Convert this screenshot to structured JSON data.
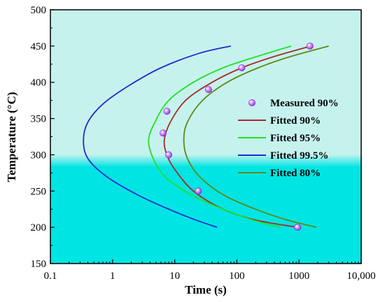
{
  "chart_data": {
    "type": "line",
    "xlabel": "Time (s)",
    "ylabel": "Temperature (°C)",
    "x_scale": "log",
    "xlim": [
      0.1,
      10000
    ],
    "ylim": [
      150,
      500
    ],
    "x_ticks": [
      {
        "value": 0.1,
        "label": "0.1"
      },
      {
        "value": 1,
        "label": "1"
      },
      {
        "value": 10,
        "label": "10"
      },
      {
        "value": 100,
        "label": "100"
      },
      {
        "value": 1000,
        "label": "1000"
      },
      {
        "value": 10000,
        "label": "10,000"
      }
    ],
    "y_ticks": [
      150,
      200,
      250,
      300,
      350,
      400,
      450,
      500
    ],
    "legend_position": "right",
    "background_colors": {
      "upper": "#c6f2ee",
      "lower": "#00e5e3"
    },
    "measured": {
      "name": "Measured 90%",
      "color": "#b44cf0",
      "points": [
        {
          "x": 1500,
          "y": 450
        },
        {
          "x": 120,
          "y": 420
        },
        {
          "x": 35,
          "y": 390
        },
        {
          "x": 7.5,
          "y": 360
        },
        {
          "x": 6.5,
          "y": 330
        },
        {
          "x": 8,
          "y": 300
        },
        {
          "x": 24,
          "y": 250
        },
        {
          "x": 950,
          "y": 200
        }
      ]
    },
    "series": [
      {
        "name": "Fitted 90%",
        "color": "#a52a2a",
        "x": [
          1550,
          380,
          120,
          40,
          15,
          8.5,
          6.8,
          7.5,
          10,
          20,
          60,
          200,
          950
        ],
        "y": [
          450,
          435,
          420,
          400,
          375,
          345,
          320,
          300,
          280,
          250,
          225,
          210,
          200
        ]
      },
      {
        "name": "Fitted 95%",
        "color": "#22e022",
        "x": [
          750,
          200,
          60,
          20,
          8,
          4.8,
          3.8,
          4.5,
          7,
          18,
          60,
          180,
          500
        ],
        "y": [
          450,
          435,
          420,
          400,
          375,
          345,
          320,
          295,
          270,
          245,
          225,
          210,
          200
        ]
      },
      {
        "name": "Fitted 99.5%",
        "color": "#1f2dcc",
        "x": [
          80,
          25,
          6,
          1.8,
          0.7,
          0.4,
          0.34,
          0.4,
          0.8,
          2.5,
          8,
          22,
          48
        ],
        "y": [
          450,
          440,
          420,
          395,
          370,
          345,
          320,
          295,
          270,
          245,
          225,
          210,
          200
        ]
      },
      {
        "name": "Fitted 80%",
        "color": "#5f8a12",
        "x": [
          3000,
          700,
          220,
          70,
          28,
          16,
          14,
          16,
          25,
          60,
          200,
          650,
          1900
        ],
        "y": [
          450,
          435,
          420,
          400,
          375,
          345,
          320,
          295,
          270,
          245,
          225,
          210,
          200
        ]
      }
    ]
  }
}
